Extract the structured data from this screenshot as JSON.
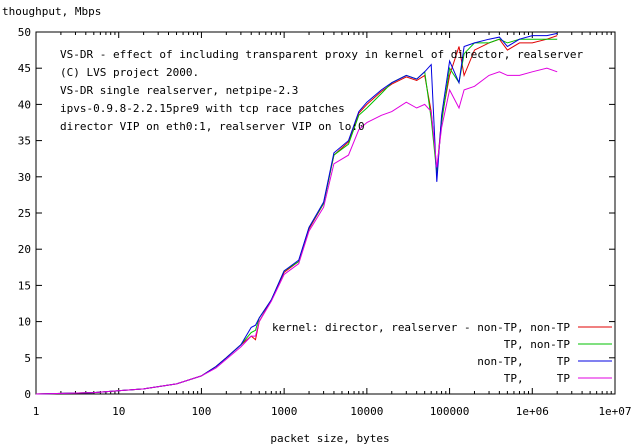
{
  "chart_data": {
    "type": "line",
    "ylabel": "thoughput, Mbps",
    "xlabel": "packet size, bytes",
    "x_scale": "log",
    "xlim": [
      1,
      10000000
    ],
    "ylim": [
      0,
      50
    ],
    "x_ticks": [
      1,
      10,
      100,
      1000,
      10000,
      100000,
      1000000,
      10000000
    ],
    "x_tick_labels": [
      "1",
      "10",
      "100",
      "1000",
      "10000",
      "100000",
      "1e+06",
      "1e+07"
    ],
    "y_ticks": [
      0,
      5,
      10,
      15,
      20,
      25,
      30,
      35,
      40,
      45,
      50
    ],
    "y_tick_labels": [
      "0",
      "5",
      "10",
      "15",
      "20",
      "25",
      "30",
      "35",
      "40",
      "45",
      "50"
    ],
    "grid": false,
    "legend_position": "bottom-right",
    "annotations": [
      "VS-DR - effect of including transparent proxy in kernel of director, realserver",
      "(C) LVS project 2000.",
      "VS-DR single realserver, netpipe-2.3",
      "ipvs-0.9.8-2.2.15pre9 with tcp race patches",
      "director VIP on eth0:1, realserver VIP on lo:0"
    ],
    "series": [
      {
        "name": "kernel: director, realserver - non-TP, non-TP",
        "color": "#e00000",
        "x": [
          1,
          5,
          20,
          50,
          100,
          150,
          200,
          300,
          400,
          450,
          500,
          700,
          1000,
          1500,
          2000,
          3000,
          4000,
          6000,
          8000,
          10000,
          15000,
          20000,
          30000,
          40000,
          50000,
          60000,
          70000,
          80000,
          100000,
          130000,
          150000,
          200000,
          300000,
          400000,
          500000,
          700000,
          1000000,
          1500000,
          2000000
        ],
        "y": [
          0,
          0.2,
          0.7,
          1.4,
          2.5,
          3.8,
          5.0,
          6.8,
          8.0,
          7.5,
          10.0,
          13.0,
          16.8,
          18.3,
          22.8,
          26.3,
          33.0,
          34.8,
          38.8,
          40.0,
          41.8,
          42.8,
          43.8,
          43.3,
          44.0,
          39.0,
          30.8,
          38.0,
          44.0,
          48.0,
          44.0,
          47.5,
          48.5,
          49.0,
          47.5,
          48.5,
          48.5,
          49.0,
          49.5
        ]
      },
      {
        "name": "TP, non-TP",
        "color": "#00c000",
        "x": [
          1,
          5,
          20,
          50,
          100,
          150,
          200,
          300,
          400,
          450,
          500,
          700,
          1000,
          1500,
          2000,
          3000,
          4000,
          6000,
          8000,
          10000,
          15000,
          20000,
          30000,
          40000,
          50000,
          60000,
          70000,
          80000,
          100000,
          130000,
          150000,
          200000,
          300000,
          400000,
          500000,
          700000,
          1000000,
          1500000,
          2000000
        ],
        "y": [
          0,
          0.2,
          0.7,
          1.4,
          2.5,
          3.8,
          5.0,
          6.8,
          8.5,
          8.8,
          10.5,
          13.0,
          17.0,
          18.3,
          23.0,
          26.3,
          33.0,
          34.5,
          38.5,
          39.5,
          41.5,
          43.0,
          44.0,
          43.5,
          44.5,
          38.0,
          30.5,
          37.5,
          45.0,
          43.0,
          47.0,
          48.5,
          48.5,
          49.0,
          48.5,
          49.0,
          49.0,
          49.0,
          49.0
        ]
      },
      {
        "name": "non-TP,     TP",
        "color": "#0000e0",
        "x": [
          1,
          5,
          20,
          50,
          100,
          150,
          200,
          300,
          400,
          450,
          500,
          700,
          1000,
          1500,
          2000,
          3000,
          4000,
          6000,
          8000,
          10000,
          15000,
          20000,
          30000,
          40000,
          50000,
          60000,
          70000,
          80000,
          100000,
          130000,
          150000,
          200000,
          300000,
          400000,
          500000,
          700000,
          1000000,
          1500000,
          2000000
        ],
        "y": [
          0,
          0.2,
          0.7,
          1.4,
          2.5,
          3.8,
          5.0,
          6.8,
          9.2,
          9.5,
          10.5,
          13.0,
          17.0,
          18.5,
          23.0,
          26.5,
          33.3,
          35.0,
          39.0,
          40.3,
          42.0,
          43.0,
          44.0,
          43.5,
          44.5,
          45.5,
          29.3,
          38.5,
          46.0,
          43.0,
          48.0,
          48.5,
          49.0,
          49.3,
          48.0,
          49.0,
          49.5,
          49.5,
          49.8
        ]
      },
      {
        "name": "TP,     TP",
        "color": "#e000e0",
        "x": [
          1,
          5,
          20,
          50,
          100,
          150,
          200,
          300,
          400,
          450,
          500,
          700,
          1000,
          1500,
          2000,
          3000,
          4000,
          6000,
          8000,
          10000,
          15000,
          20000,
          30000,
          40000,
          50000,
          60000,
          70000,
          80000,
          100000,
          130000,
          150000,
          200000,
          300000,
          400000,
          500000,
          700000,
          1000000,
          1500000,
          2000000
        ],
        "y": [
          0,
          0.2,
          0.7,
          1.4,
          2.5,
          3.6,
          4.8,
          6.5,
          8.0,
          8.0,
          10.0,
          12.8,
          16.5,
          18.0,
          22.5,
          25.8,
          31.8,
          33.0,
          36.5,
          37.5,
          38.5,
          39.0,
          40.3,
          39.5,
          40.0,
          39.0,
          31.3,
          36.8,
          42.0,
          39.5,
          42.0,
          42.5,
          44.0,
          44.5,
          44.0,
          44.0,
          44.5,
          45.0,
          44.5
        ]
      }
    ]
  }
}
